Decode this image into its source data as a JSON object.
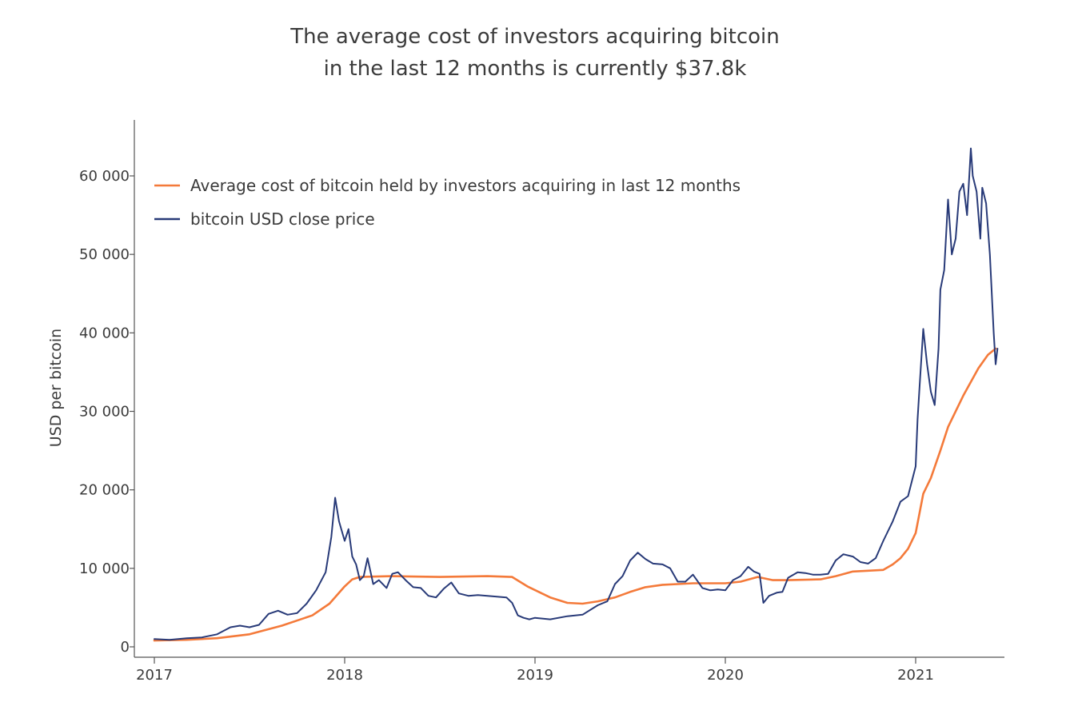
{
  "title_line1": "The average cost of investors acquiring bitcoin",
  "title_line2": "in the last 12 months is currently $37.8k",
  "chart_data": {
    "type": "line",
    "ylabel": "USD per bitcoin",
    "xlabel": "",
    "ylim": [
      0,
      65000
    ],
    "xlim": [
      2017.0,
      2021.5
    ],
    "y_ticks": [
      0,
      10000,
      20000,
      30000,
      40000,
      50000,
      60000
    ],
    "y_tick_labels": [
      "0",
      "10 000",
      "20 000",
      "30 000",
      "40 000",
      "50 000",
      "60 000"
    ],
    "x_ticks": [
      2017,
      2018,
      2019,
      2020,
      2021
    ],
    "x_tick_labels": [
      "2017",
      "2018",
      "2019",
      "2020",
      "2021"
    ],
    "legend_position": "top-left",
    "grid": false,
    "series": [
      {
        "name": "Average cost of bitcoin held by investors acquiring in last 12 months",
        "color": "#f47a3a",
        "x": [
          2017.0,
          2017.17,
          2017.33,
          2017.5,
          2017.67,
          2017.83,
          2017.92,
          2018.0,
          2018.04,
          2018.08,
          2018.25,
          2018.5,
          2018.75,
          2018.88,
          2018.96,
          2019.08,
          2019.17,
          2019.25,
          2019.33,
          2019.42,
          2019.5,
          2019.58,
          2019.67,
          2019.75,
          2019.83,
          2019.92,
          2020.0,
          2020.08,
          2020.17,
          2020.25,
          2020.33,
          2020.5,
          2020.58,
          2020.67,
          2020.75,
          2020.83,
          2020.88,
          2020.92,
          2020.96,
          2021.0,
          2021.04,
          2021.08,
          2021.13,
          2021.17,
          2021.25,
          2021.33,
          2021.38,
          2021.42
        ],
        "y": [
          800,
          900,
          1100,
          1600,
          2700,
          4000,
          5500,
          7700,
          8600,
          8900,
          9000,
          8900,
          9000,
          8900,
          7700,
          6300,
          5600,
          5500,
          5800,
          6300,
          7000,
          7600,
          7900,
          8000,
          8100,
          8100,
          8100,
          8300,
          8900,
          8500,
          8500,
          8600,
          9000,
          9600,
          9700,
          9800,
          10500,
          11300,
          12500,
          14500,
          19500,
          21500,
          25000,
          28000,
          32000,
          35500,
          37200,
          38000
        ]
      },
      {
        "name": "bitcoin USD close price",
        "color": "#283a78",
        "x": [
          2017.0,
          2017.08,
          2017.17,
          2017.25,
          2017.33,
          2017.4,
          2017.45,
          2017.5,
          2017.55,
          2017.6,
          2017.65,
          2017.7,
          2017.75,
          2017.8,
          2017.85,
          2017.9,
          2017.93,
          2017.95,
          2017.97,
          2018.0,
          2018.02,
          2018.04,
          2018.06,
          2018.08,
          2018.1,
          2018.12,
          2018.15,
          2018.18,
          2018.22,
          2018.25,
          2018.28,
          2018.32,
          2018.36,
          2018.4,
          2018.44,
          2018.48,
          2018.52,
          2018.56,
          2018.6,
          2018.65,
          2018.7,
          2018.75,
          2018.8,
          2018.85,
          2018.88,
          2018.91,
          2018.94,
          2018.97,
          2019.0,
          2019.08,
          2019.17,
          2019.25,
          2019.33,
          2019.38,
          2019.42,
          2019.46,
          2019.5,
          2019.54,
          2019.58,
          2019.62,
          2019.67,
          2019.71,
          2019.75,
          2019.79,
          2019.83,
          2019.88,
          2019.92,
          2019.96,
          2020.0,
          2020.04,
          2020.08,
          2020.12,
          2020.15,
          2020.18,
          2020.2,
          2020.23,
          2020.27,
          2020.3,
          2020.33,
          2020.38,
          2020.42,
          2020.46,
          2020.5,
          2020.54,
          2020.58,
          2020.62,
          2020.67,
          2020.71,
          2020.75,
          2020.79,
          2020.83,
          2020.88,
          2020.92,
          2020.96,
          2021.0,
          2021.01,
          2021.02,
          2021.04,
          2021.06,
          2021.08,
          2021.1,
          2021.12,
          2021.13,
          2021.15,
          2021.17,
          2021.19,
          2021.21,
          2021.23,
          2021.25,
          2021.27,
          2021.29,
          2021.3,
          2021.32,
          2021.34,
          2021.35,
          2021.37,
          2021.39,
          2021.41,
          2021.42,
          2021.43
        ],
        "y": [
          1000,
          900,
          1100,
          1200,
          1600,
          2500,
          2700,
          2500,
          2800,
          4200,
          4600,
          4100,
          4300,
          5500,
          7200,
          9500,
          14000,
          19000,
          16000,
          13500,
          15000,
          11500,
          10500,
          8500,
          9000,
          11300,
          8000,
          8500,
          7500,
          9300,
          9500,
          8500,
          7600,
          7500,
          6500,
          6300,
          7400,
          8200,
          6800,
          6500,
          6600,
          6500,
          6400,
          6300,
          5600,
          4000,
          3700,
          3500,
          3700,
          3500,
          3900,
          4100,
          5300,
          5800,
          8000,
          9000,
          11000,
          12000,
          11200,
          10600,
          10500,
          10000,
          8300,
          8300,
          9200,
          7500,
          7200,
          7300,
          7200,
          8500,
          9000,
          10200,
          9600,
          9300,
          5600,
          6500,
          6900,
          7000,
          8800,
          9500,
          9400,
          9200,
          9200,
          9300,
          11000,
          11800,
          11500,
          10800,
          10600,
          11300,
          13500,
          16000,
          18500,
          19200,
          23000,
          29000,
          33000,
          40500,
          36000,
          32500,
          30800,
          38000,
          45500,
          48000,
          57000,
          50000,
          52000,
          58000,
          59000,
          55000,
          63500,
          60000,
          58000,
          52000,
          58500,
          56500,
          50000,
          40000,
          36000,
          38000
        ]
      }
    ]
  }
}
